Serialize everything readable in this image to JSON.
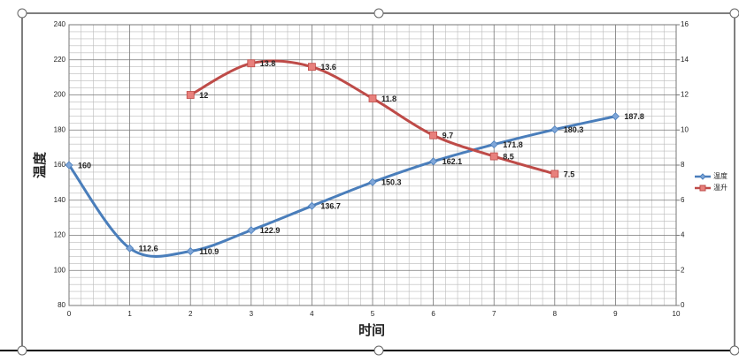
{
  "chart_data": {
    "type": "line",
    "x_label": "时间",
    "y_label": "温度",
    "xlim": [
      0,
      10
    ],
    "xticks": [
      0,
      1,
      2,
      3,
      4,
      5,
      6,
      7,
      8,
      9,
      10
    ],
    "ylim": [
      80,
      240
    ],
    "yticks": [
      80,
      100,
      120,
      140,
      160,
      180,
      200,
      220,
      240
    ],
    "y2lim": [
      0,
      16
    ],
    "y2ticks": [
      0,
      2,
      4,
      6,
      8,
      10,
      12,
      14,
      16
    ],
    "grid": true,
    "minor_grid": true,
    "smooth": true,
    "legend": "right",
    "series": [
      {
        "name": "温度",
        "color": "#4a7ebb",
        "marker": "diamond",
        "x": [
          0,
          1,
          2,
          3,
          4,
          5,
          6,
          7,
          8,
          9
        ],
        "values": [
          160,
          112.6,
          110.9,
          122.9,
          136.7,
          150.3,
          162.1,
          171.8,
          180.3,
          187.8
        ]
      },
      {
        "name": "温升",
        "color": "#be4b48",
        "marker": "square",
        "axis": "y2",
        "x": [
          2,
          3,
          4,
          5,
          6,
          7,
          8
        ],
        "values": [
          12,
          13.8,
          13.6,
          11.8,
          9.7,
          8.5,
          7.5
        ]
      }
    ]
  }
}
